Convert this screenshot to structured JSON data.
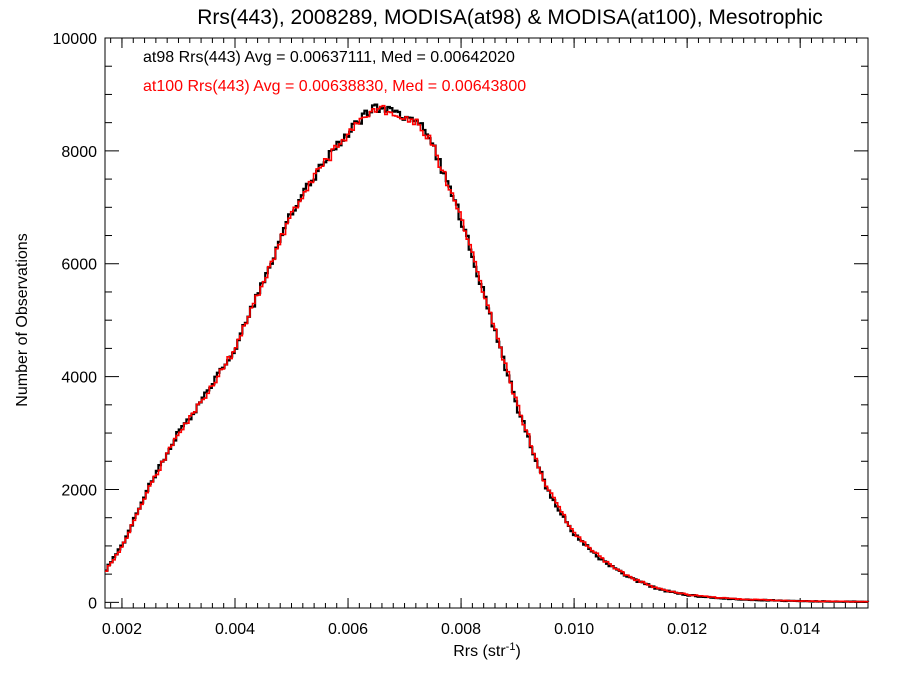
{
  "chart_data": {
    "type": "line",
    "title": "Rrs(443), 2008289, MODISA(at98) & MODISA(at100), Mesotrophic",
    "xlabel": "Rrs (str",
    "xlabel_superscript": "-1",
    "xlabel_suffix": ")",
    "ylabel": "Number of Observations",
    "xlim": [
      0.0017,
      0.0152
    ],
    "ylim": [
      -100,
      10000
    ],
    "xticks": [
      0.002,
      0.004,
      0.006,
      0.008,
      0.01,
      0.012,
      0.014
    ],
    "xtick_labels": [
      "0.002",
      "0.004",
      "0.006",
      "0.008",
      "0.010",
      "0.012",
      "0.014"
    ],
    "yticks": [
      0,
      2000,
      4000,
      6000,
      8000,
      10000
    ],
    "ytick_labels": [
      "0",
      "2000",
      "4000",
      "6000",
      "8000",
      "10000"
    ],
    "grid": false,
    "legend_placement": "top-left",
    "series": [
      {
        "name": "at98 Rrs(443) Avg = 0.00637111, Med = 0.00642020",
        "color": "#000000",
        "x": [
          0.0017,
          0.002,
          0.0025,
          0.003,
          0.0035,
          0.004,
          0.0045,
          0.005,
          0.0055,
          0.006,
          0.0063,
          0.0065,
          0.0067,
          0.007,
          0.0073,
          0.0075,
          0.008,
          0.0085,
          0.009,
          0.0095,
          0.01,
          0.0105,
          0.011,
          0.0115,
          0.012,
          0.0125,
          0.013,
          0.014,
          0.0152
        ],
        "y": [
          550,
          1000,
          2100,
          3000,
          3700,
          4500,
          5700,
          6900,
          7700,
          8300,
          8650,
          8780,
          8720,
          8580,
          8450,
          8100,
          6800,
          5150,
          3450,
          2050,
          1200,
          740,
          430,
          230,
          130,
          80,
          50,
          20,
          10
        ]
      },
      {
        "name": "at100 Rrs(443) Avg = 0.00638830, Med = 0.00643800",
        "color": "#ff0000",
        "x": [
          0.0017,
          0.002,
          0.0025,
          0.003,
          0.0035,
          0.004,
          0.0045,
          0.005,
          0.0055,
          0.006,
          0.0063,
          0.0065,
          0.0067,
          0.007,
          0.0073,
          0.0075,
          0.008,
          0.0085,
          0.009,
          0.0095,
          0.01,
          0.0105,
          0.011,
          0.0115,
          0.012,
          0.0125,
          0.013,
          0.014,
          0.0152
        ],
        "y": [
          540,
          980,
          2080,
          2980,
          3690,
          4490,
          5680,
          6880,
          7690,
          8290,
          8640,
          8760,
          8710,
          8570,
          8440,
          8090,
          6810,
          5170,
          3480,
          2070,
          1220,
          760,
          440,
          240,
          140,
          85,
          55,
          22,
          10
        ]
      }
    ]
  }
}
